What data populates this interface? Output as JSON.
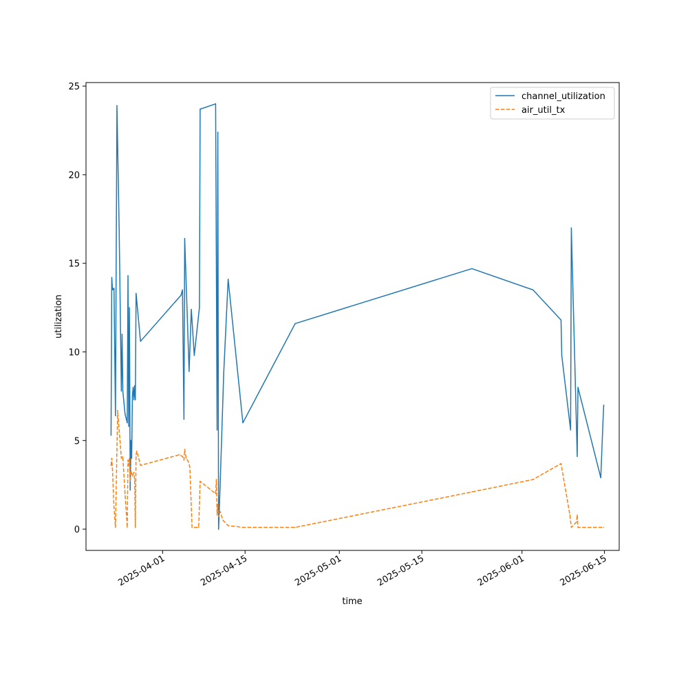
{
  "chart_data": {
    "type": "line",
    "xlabel": "time",
    "ylabel": "utilization",
    "ylim": [
      -1.2,
      25.2
    ],
    "xlim": [
      "2025-03-19T00:00",
      "2025-06-17T12:00"
    ],
    "yticks": [
      0,
      5,
      10,
      15,
      20,
      25
    ],
    "xticks": [
      "2025-04-01",
      "2025-04-15",
      "2025-05-01",
      "2025-05-15",
      "2025-06-01",
      "2025-06-15"
    ],
    "grid": false,
    "legend_position": "top-right",
    "series": [
      {
        "name": "channel_utilization",
        "color": "#1f77b4",
        "style": "solid",
        "points": [
          [
            "2025-03-23T06:00",
            5.3
          ],
          [
            "2025-03-23T09:00",
            14.2
          ],
          [
            "2025-03-23T12:00",
            13.5
          ],
          [
            "2025-03-23T18:00",
            13.6
          ],
          [
            "2025-03-24T00:00",
            6.4
          ],
          [
            "2025-03-24T06:00",
            23.9
          ],
          [
            "2025-03-24T15:00",
            17.0
          ],
          [
            "2025-03-25T00:00",
            7.8
          ],
          [
            "2025-03-25T03:00",
            11.0
          ],
          [
            "2025-03-25T06:00",
            7.8
          ],
          [
            "2025-03-25T15:00",
            6.5
          ],
          [
            "2025-03-26T00:00",
            6.0
          ],
          [
            "2025-03-26T03:00",
            14.3
          ],
          [
            "2025-03-26T06:00",
            5.8
          ],
          [
            "2025-03-26T09:00",
            12.5
          ],
          [
            "2025-03-26T12:00",
            2.2
          ],
          [
            "2025-03-26T15:00",
            5.0
          ],
          [
            "2025-03-26T18:00",
            4.0
          ],
          [
            "2025-03-26T21:00",
            7.5
          ],
          [
            "2025-03-27T00:00",
            8.0
          ],
          [
            "2025-03-27T03:00",
            7.3
          ],
          [
            "2025-03-27T06:00",
            8.1
          ],
          [
            "2025-03-27T09:00",
            7.3
          ],
          [
            "2025-03-27T12:00",
            13.3
          ],
          [
            "2025-03-28T06:00",
            10.6
          ],
          [
            "2025-04-04T03:00",
            13.2
          ],
          [
            "2025-04-04T09:00",
            13.5
          ],
          [
            "2025-04-04T15:00",
            6.2
          ],
          [
            "2025-04-04T18:00",
            16.4
          ],
          [
            "2025-04-05T12:00",
            8.9
          ],
          [
            "2025-04-05T21:00",
            12.4
          ],
          [
            "2025-04-06T09:00",
            9.8
          ],
          [
            "2025-04-07T06:00",
            12.5
          ],
          [
            "2025-04-07T09:00",
            23.7
          ],
          [
            "2025-04-10T00:00",
            24.0
          ],
          [
            "2025-04-10T06:00",
            5.6
          ],
          [
            "2025-04-10T09:00",
            22.4
          ],
          [
            "2025-04-10T12:00",
            0.0
          ],
          [
            "2025-04-10T18:00",
            2.3
          ],
          [
            "2025-04-11T09:00",
            8.8
          ],
          [
            "2025-04-12T03:00",
            14.1
          ],
          [
            "2025-04-14T15:00",
            6.0
          ],
          [
            "2025-04-23T12:00",
            11.6
          ],
          [
            "2025-05-23T12:00",
            14.7
          ],
          [
            "2025-06-02T21:00",
            13.5
          ],
          [
            "2025-06-07T15:00",
            11.8
          ],
          [
            "2025-06-07T18:00",
            9.8
          ],
          [
            "2025-06-09T06:00",
            5.6
          ],
          [
            "2025-06-09T09:00",
            17.0
          ],
          [
            "2025-06-10T09:00",
            4.1
          ],
          [
            "2025-06-10T12:00",
            8.0
          ],
          [
            "2025-06-14T09:00",
            2.9
          ],
          [
            "2025-06-14T18:00",
            6.1
          ],
          [
            "2025-06-14T21:00",
            7.0
          ]
        ]
      },
      {
        "name": "air_util_tx",
        "color": "#ff7f0e",
        "style": "dashed",
        "points": [
          [
            "2025-03-23T06:00",
            3.6
          ],
          [
            "2025-03-23T09:00",
            4.0
          ],
          [
            "2025-03-23T12:00",
            3.3
          ],
          [
            "2025-03-23T18:00",
            1.2
          ],
          [
            "2025-03-24T00:00",
            0.1
          ],
          [
            "2025-03-24T09:00",
            6.7
          ],
          [
            "2025-03-25T00:00",
            4.0
          ],
          [
            "2025-03-25T06:00",
            4.1
          ],
          [
            "2025-03-25T15:00",
            2.0
          ],
          [
            "2025-03-26T00:00",
            0.1
          ],
          [
            "2025-03-26T03:00",
            3.9
          ],
          [
            "2025-03-26T06:00",
            3.6
          ],
          [
            "2025-03-26T09:00",
            4.0
          ],
          [
            "2025-03-26T12:00",
            2.7
          ],
          [
            "2025-03-26T15:00",
            3.3
          ],
          [
            "2025-03-26T21:00",
            3.0
          ],
          [
            "2025-03-27T03:00",
            3.2
          ],
          [
            "2025-03-27T06:00",
            2.8
          ],
          [
            "2025-03-27T09:00",
            0.1
          ],
          [
            "2025-03-27T12:00",
            4.2
          ],
          [
            "2025-03-27T15:00",
            4.4
          ],
          [
            "2025-03-28T06:00",
            3.6
          ],
          [
            "2025-04-03T21:00",
            4.2
          ],
          [
            "2025-04-04T09:00",
            4.1
          ],
          [
            "2025-04-04T15:00",
            3.9
          ],
          [
            "2025-04-04T18:00",
            4.5
          ],
          [
            "2025-04-05T00:00",
            4.0
          ],
          [
            "2025-04-05T09:00",
            3.8
          ],
          [
            "2025-04-05T15:00",
            3.5
          ],
          [
            "2025-04-06T00:00",
            0.1
          ],
          [
            "2025-04-06T09:00",
            0.1
          ],
          [
            "2025-04-07T03:00",
            0.1
          ],
          [
            "2025-04-07T09:00",
            2.7
          ],
          [
            "2025-04-10T00:00",
            2.0
          ],
          [
            "2025-04-10T03:00",
            2.8
          ],
          [
            "2025-04-10T06:00",
            0.8
          ],
          [
            "2025-04-10T09:00",
            1.4
          ],
          [
            "2025-04-10T12:00",
            0.7
          ],
          [
            "2025-04-10T18:00",
            1.0
          ],
          [
            "2025-04-11T06:00",
            0.5
          ],
          [
            "2025-04-12T03:00",
            0.2
          ],
          [
            "2025-04-14T15:00",
            0.1
          ],
          [
            "2025-04-23T12:00",
            0.1
          ],
          [
            "2025-05-23T12:00",
            2.1
          ],
          [
            "2025-06-02T21:00",
            2.8
          ],
          [
            "2025-06-07T15:00",
            3.7
          ],
          [
            "2025-06-09T03:00",
            0.8
          ],
          [
            "2025-06-09T09:00",
            0.1
          ],
          [
            "2025-06-10T06:00",
            0.4
          ],
          [
            "2025-06-10T09:00",
            0.8
          ],
          [
            "2025-06-10T12:00",
            0.1
          ],
          [
            "2025-06-14T12:00",
            0.1
          ],
          [
            "2025-06-14T21:00",
            0.1
          ]
        ]
      }
    ]
  }
}
